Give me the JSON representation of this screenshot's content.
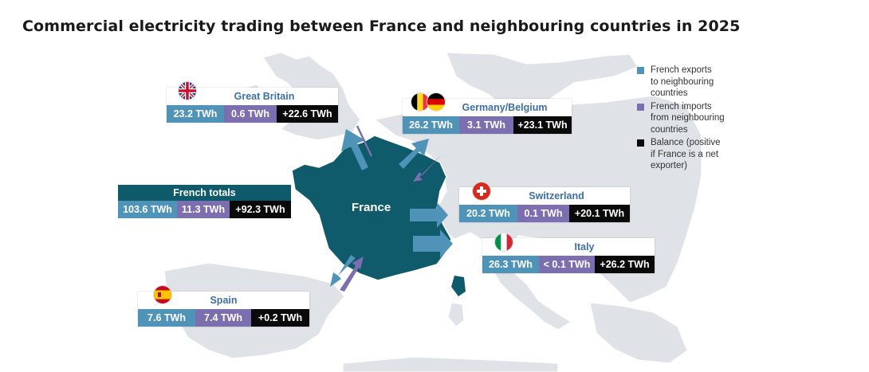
{
  "title": "Commercial electricity trading between France and neighbouring countries in 2025",
  "map_label": "France",
  "colors": {
    "exports": "#4f93b8",
    "imports": "#7b6fb0",
    "balance": "#0a0a0a",
    "france": "#0f5a6b",
    "land": "#dfe2e6"
  },
  "legend": [
    {
      "label_lines": [
        "French exports",
        "to neighbouring",
        "countries"
      ],
      "color": "#4f93b8"
    },
    {
      "label_lines": [
        "French imports",
        "from neighbouring",
        "countries"
      ],
      "color": "#7b6fb0"
    },
    {
      "label_lines": [
        "Balance (positive",
        "if France is a net",
        "exporter)"
      ],
      "color": "#0a0a0a"
    }
  ],
  "totals": {
    "name": "French totals",
    "exports": "103.6 TWh",
    "imports": "11.3 TWh",
    "balance": "+92.3 TWh"
  },
  "countries": [
    {
      "id": "great-britain",
      "name": "Great Britain",
      "exports": "23.2 TWh",
      "imports": "0.6 TWh",
      "balance": "+22.6 TWh",
      "flags": [
        "uk-flag"
      ]
    },
    {
      "id": "germany-belgium",
      "name": "Germany/Belgium",
      "exports": "26.2 TWh",
      "imports": "3.1 TWh",
      "balance": "+23.1 TWh",
      "flags": [
        "belgium-flag",
        "germany-flag"
      ]
    },
    {
      "id": "switzerland",
      "name": "Switzerland",
      "exports": "20.2 TWh",
      "imports": "0.1 TWh",
      "balance": "+20.1 TWh",
      "flags": [
        "switzerland-flag"
      ]
    },
    {
      "id": "italy",
      "name": "Italy",
      "exports": "26.3 TWh",
      "imports": "< 0.1 TWh",
      "balance": "+26.2 TWh",
      "flags": [
        "italy-flag"
      ]
    },
    {
      "id": "spain",
      "name": "Spain",
      "exports": "7.6 TWh",
      "imports": "7.4 TWh",
      "balance": "+0.2 TWh",
      "flags": [
        "spain-flag"
      ]
    }
  ]
}
